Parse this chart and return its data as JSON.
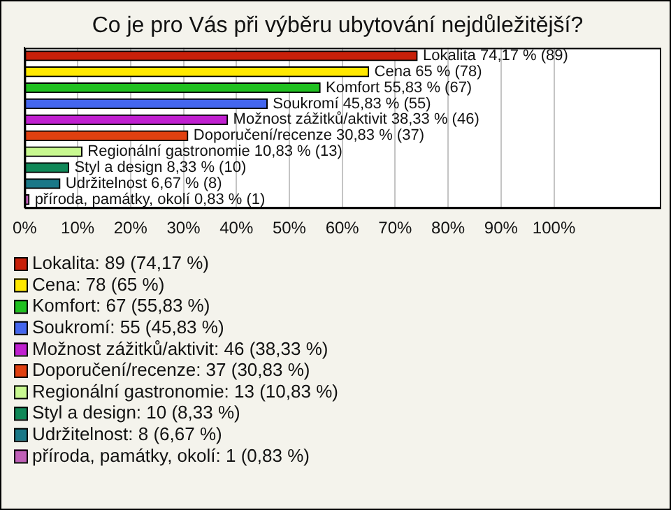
{
  "chart_data": {
    "type": "bar",
    "orientation": "horizontal",
    "title": "Co je pro Vás při výběru ubytování nejdůležitější?",
    "categories": [
      null,
      null,
      null,
      null,
      null,
      null,
      null,
      null,
      null,
      null
    ],
    "series": [
      {
        "name": "Lokalita: 89 (74,17 %)",
        "color": "#c8200a",
        "values": [
          74.17,
          null,
          null,
          null,
          null,
          null,
          null,
          null,
          null,
          null
        ],
        "value_labels": [
          "Lokalita 74,17 % (89)",
          null,
          null,
          null,
          null,
          null,
          null,
          null,
          null,
          null
        ]
      },
      {
        "name": "Cena: 78 (65 %)",
        "color": "#ffe800",
        "values": [
          null,
          65,
          null,
          null,
          null,
          null,
          null,
          null,
          null,
          null
        ],
        "value_labels": [
          null,
          "Cena 65 % (78)",
          null,
          null,
          null,
          null,
          null,
          null,
          null,
          null
        ]
      },
      {
        "name": "Komfort: 67 (55,83 %)",
        "color": "#20c020",
        "values": [
          null,
          null,
          55.83,
          null,
          null,
          null,
          null,
          null,
          null,
          null
        ],
        "value_labels": [
          null,
          null,
          "Komfort 55,83 % (67)",
          null,
          null,
          null,
          null,
          null,
          null,
          null
        ]
      },
      {
        "name": "Soukromí: 55 (45,83 %)",
        "color": "#4466ee",
        "values": [
          null,
          null,
          null,
          45.83,
          null,
          null,
          null,
          null,
          null,
          null
        ],
        "value_labels": [
          null,
          null,
          null,
          "Soukromí 45,83 % (55)",
          null,
          null,
          null,
          null,
          null,
          null
        ]
      },
      {
        "name": "Možnost zážitků/aktivit: 46 (38,33 %)",
        "color": "#c020d0",
        "values": [
          null,
          null,
          null,
          null,
          38.33,
          null,
          null,
          null,
          null,
          null
        ],
        "value_labels": [
          null,
          null,
          null,
          null,
          "Možnost zážitků/aktivit 38,33 % (46)",
          null,
          null,
          null,
          null,
          null
        ]
      },
      {
        "name": "Doporučení/recenze: 37 (30,83 %)",
        "color": "#e04010",
        "values": [
          null,
          null,
          null,
          null,
          null,
          30.83,
          null,
          null,
          null,
          null
        ],
        "value_labels": [
          null,
          null,
          null,
          null,
          null,
          "Doporučení/recenze 30,83 % (37)",
          null,
          null,
          null,
          null
        ]
      },
      {
        "name": "Regionální gastronomie: 13 (10,83 %)",
        "color": "#c8f890",
        "values": [
          null,
          null,
          null,
          null,
          null,
          null,
          10.83,
          null,
          null,
          null
        ],
        "value_labels": [
          null,
          null,
          null,
          null,
          null,
          null,
          "Regionální gastronomie 10,83 % (13)",
          null,
          null,
          null
        ]
      },
      {
        "name": "Styl a design: 10 (8,33 %)",
        "color": "#108858",
        "values": [
          null,
          null,
          null,
          null,
          null,
          null,
          null,
          8.33,
          null,
          null
        ],
        "value_labels": [
          null,
          null,
          null,
          null,
          null,
          null,
          null,
          "Styl a design 8,33 % (10)",
          null,
          null
        ]
      },
      {
        "name": "Udržitelnost: 8 (6,67 %)",
        "color": "#1a7888",
        "values": [
          null,
          null,
          null,
          null,
          null,
          null,
          null,
          null,
          6.67,
          null
        ],
        "value_labels": [
          null,
          null,
          null,
          null,
          null,
          null,
          null,
          null,
          "Udržitelnost 6,67 % (8)",
          null
        ]
      },
      {
        "name": "příroda, památky, okolí: 1 (0,83 %)",
        "color": "#c060b8",
        "values": [
          null,
          null,
          null,
          null,
          null,
          null,
          null,
          null,
          null,
          0.83
        ],
        "value_labels": [
          null,
          null,
          null,
          null,
          null,
          null,
          null,
          null,
          null,
          "příroda, památky, okolí 0,83 % (1)"
        ]
      }
    ],
    "xlim": [
      0,
      120
    ],
    "xticks": [
      {
        "value": 0,
        "label": "0%"
      },
      {
        "value": 10,
        "label": "10%"
      },
      {
        "value": 20,
        "label": "20%"
      },
      {
        "value": 30,
        "label": "30%"
      },
      {
        "value": 40,
        "label": "40%"
      },
      {
        "value": 50,
        "label": "50%"
      },
      {
        "value": 60,
        "label": "60%"
      },
      {
        "value": 70,
        "label": "70%"
      },
      {
        "value": 80,
        "label": "80%"
      },
      {
        "value": 90,
        "label": "90%"
      },
      {
        "value": 100,
        "label": "100%"
      }
    ],
    "grid": "x",
    "tick_labels": "x",
    "legend": "bottom"
  }
}
